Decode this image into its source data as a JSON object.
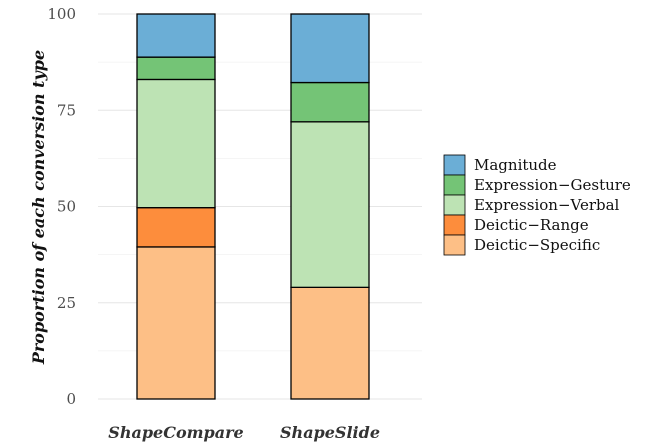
{
  "chart_data": {
    "type": "bar",
    "stacked": true,
    "categories": [
      "ShapeCompare",
      "ShapeSlide"
    ],
    "ylabel": "Proportion of each conversion type",
    "xlabel": "",
    "ylim": [
      0,
      100
    ],
    "yticks": [
      0,
      25,
      50,
      75,
      100
    ],
    "grid": true,
    "legend_position": "right",
    "series": [
      {
        "name": "Deictic−Specific",
        "color": "#fdbf86",
        "values": [
          39.5,
          29.0
        ]
      },
      {
        "name": "Deictic−Range",
        "color": "#fd8d3c",
        "values": [
          10.2,
          0.0
        ]
      },
      {
        "name": "Expression−Verbal",
        "color": "#bde3b4",
        "values": [
          33.3,
          43.0
        ]
      },
      {
        "name": "Expression−Gesture",
        "color": "#74c476",
        "values": [
          5.8,
          10.2
        ]
      },
      {
        "name": "Magnitude",
        "color": "#6baed6",
        "values": [
          11.2,
          17.8
        ]
      }
    ]
  }
}
